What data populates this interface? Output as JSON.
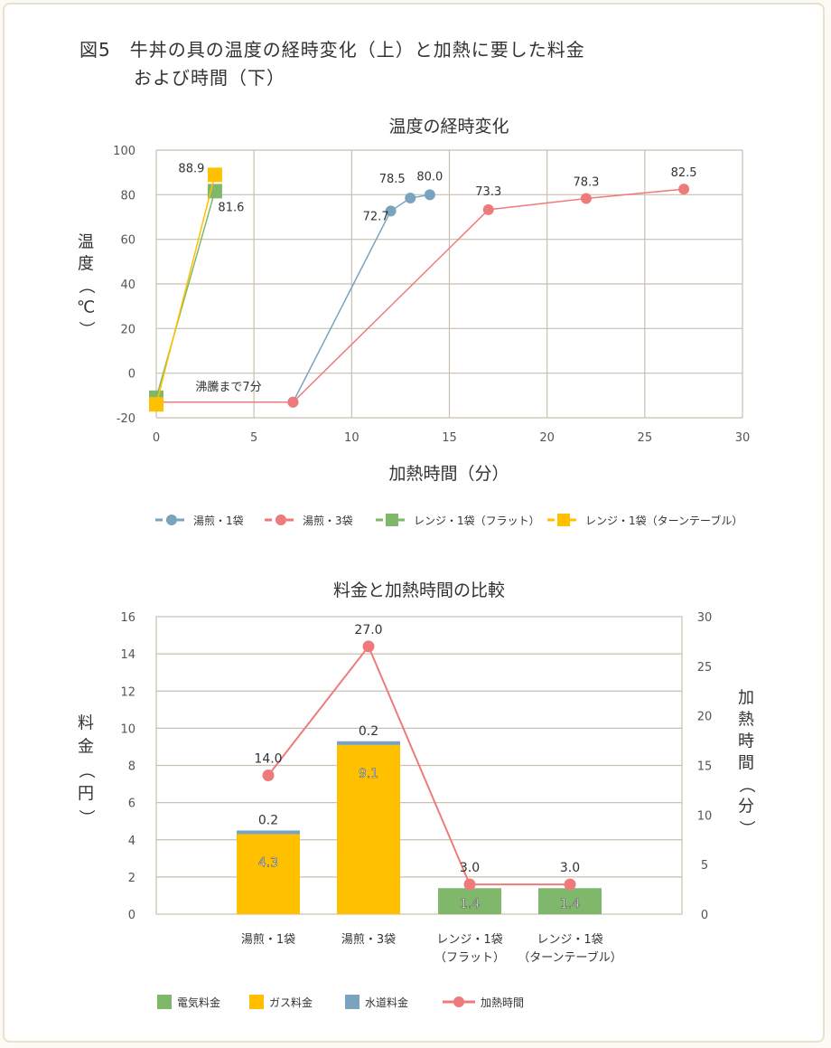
{
  "figure": {
    "title_line1": "図5　牛丼の具の温度の経時変化（上）と加熱に要した料金",
    "title_line2": "および時間（下）"
  },
  "colors": {
    "blue": "#7aa3bd",
    "red": "#ee7b7b",
    "green": "#7fb86b",
    "yellow": "#ffc000",
    "grid": "#c8c0b0",
    "axis_text": "#555555"
  },
  "chart_data": [
    {
      "type": "line",
      "title": "温度の経時変化",
      "xlabel": "加熱時間（分）",
      "ylabel": "温度（℃）",
      "xlim": [
        0,
        30
      ],
      "ylim": [
        -20,
        100
      ],
      "xticks": [
        "0",
        "5",
        "10",
        "15",
        "20",
        "25",
        "30"
      ],
      "yticks": [
        "100",
        "80",
        "60",
        "40",
        "20",
        "0",
        "-20"
      ],
      "grid": true,
      "legend_position": "bottom",
      "annotation": "沸騰まで7分",
      "series": [
        {
          "name": "湯煎・1袋",
          "color": "#7aa3bd",
          "marker": "circle",
          "points": [
            [
              0,
              -13
            ],
            [
              7,
              -13
            ],
            [
              12,
              72.7
            ],
            [
              13,
              78.5
            ],
            [
              14,
              80.0
            ]
          ],
          "labels": [
            "",
            "",
            "72.7",
            "78.5",
            "80.0"
          ]
        },
        {
          "name": "湯煎・3袋",
          "color": "#ee7b7b",
          "marker": "circle",
          "points": [
            [
              0,
              -13
            ],
            [
              7,
              -13
            ],
            [
              17,
              73.3
            ],
            [
              22,
              78.3
            ],
            [
              27,
              82.5
            ]
          ],
          "labels": [
            "",
            "",
            "73.3",
            "78.3",
            "82.5"
          ]
        },
        {
          "name": "レンジ・1袋（フラット）",
          "color": "#7fb86b",
          "marker": "square",
          "points": [
            [
              0,
              -11
            ],
            [
              3,
              81.6
            ]
          ],
          "labels": [
            "",
            "81.6"
          ]
        },
        {
          "name": "レンジ・1袋（ターンテーブル）",
          "color": "#ffc000",
          "marker": "square",
          "points": [
            [
              0,
              -14
            ],
            [
              3,
              88.9
            ]
          ],
          "labels": [
            "",
            "88.9"
          ]
        }
      ]
    },
    {
      "type": "bar",
      "title": "料金と加熱時間の比較",
      "ylabel": "料金（円）",
      "y2label": "加熱時間（分）",
      "ylim": [
        0,
        16
      ],
      "y2lim": [
        0,
        30
      ],
      "yticks": [
        "16",
        "14",
        "12",
        "10",
        "8",
        "6",
        "4",
        "2",
        "0"
      ],
      "y2ticks": [
        "30",
        "25",
        "20",
        "15",
        "10",
        "5",
        "0"
      ],
      "categories": [
        [
          "湯煎・1袋"
        ],
        [
          "湯煎・3袋"
        ],
        [
          "レンジ・1袋",
          "（フラット）"
        ],
        [
          "レンジ・1袋",
          "（ターンテーブル）"
        ]
      ],
      "legend_position": "bottom",
      "series": [
        {
          "name": "電気料金",
          "color": "#7fb86b",
          "values": [
            0,
            0,
            1.4,
            1.4
          ],
          "labels": [
            "",
            "",
            "1.4",
            "1.4"
          ]
        },
        {
          "name": "ガス料金",
          "color": "#ffc000",
          "values": [
            4.3,
            9.1,
            0,
            0
          ],
          "labels": [
            "4.3",
            "9.1",
            "",
            ""
          ]
        },
        {
          "name": "水道料金",
          "color": "#7aa3bd",
          "values": [
            0.2,
            0.2,
            0,
            0
          ],
          "labels": [
            "0.2",
            "0.2",
            "",
            ""
          ]
        }
      ],
      "line_series": {
        "name": "加熱時間",
        "color": "#ee7b7b",
        "axis": "right",
        "values": [
          14.0,
          27.0,
          3.0,
          3.0
        ],
        "labels": [
          "14.0",
          "27.0",
          "3.0",
          "3.0"
        ]
      }
    }
  ]
}
